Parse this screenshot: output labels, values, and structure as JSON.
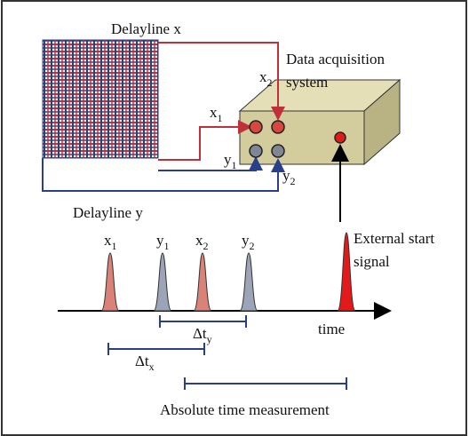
{
  "labels": {
    "delayline_x": "Delayline x",
    "delayline_y": "Delayline y",
    "daq": [
      "Data acquisition",
      "system"
    ],
    "connectors": [
      {
        "letter": "x",
        "sub": "2"
      },
      {
        "letter": "x",
        "sub": "1"
      },
      {
        "letter": "y",
        "sub": "1"
      },
      {
        "letter": "y",
        "sub": "2"
      }
    ],
    "pulses": [
      {
        "letter": "x",
        "sub": "1"
      },
      {
        "letter": "y",
        "sub": "1"
      },
      {
        "letter": "x",
        "sub": "2"
      },
      {
        "letter": "y",
        "sub": "2"
      }
    ],
    "external": [
      "External start",
      "signal"
    ],
    "time": "time",
    "dty": {
      "letter": "Δt",
      "sub": "y"
    },
    "dtx": {
      "letter": "Δt",
      "sub": "x"
    },
    "absolute": "Absolute time measurement"
  }
}
